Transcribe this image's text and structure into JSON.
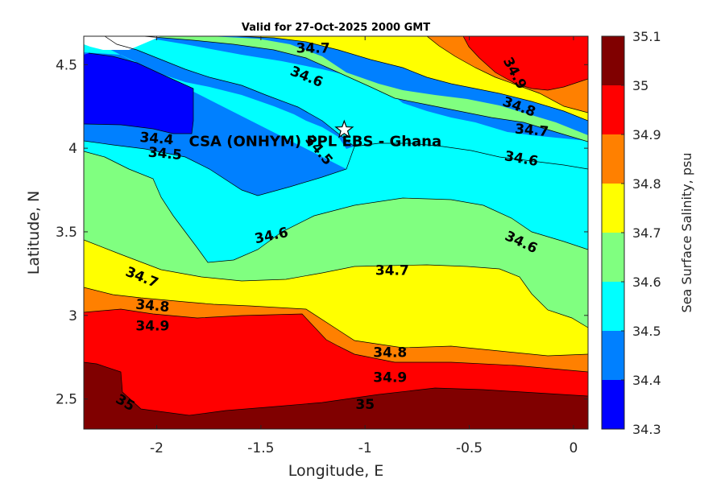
{
  "chart_data": {
    "type": "filled-contour",
    "title": "Valid for 27-Oct-2025 2000 GMT",
    "xlabel": "Longitude, E",
    "ylabel": "Latitude, N",
    "xlim": [
      -2.35,
      0.07
    ],
    "ylim": [
      2.32,
      4.67
    ],
    "xticks": [
      -2,
      -1.5,
      -1,
      -0.5,
      0
    ],
    "xtick_labels": [
      "-2",
      "-1.5",
      "-1",
      "-0.5",
      "0"
    ],
    "yticks": [
      2.5,
      3,
      3.5,
      4,
      4.5
    ],
    "ytick_labels": [
      "2.5",
      "3",
      "3.5",
      "4",
      "4.5"
    ],
    "colorbar": {
      "label": "Sea Surface Salinity, psu",
      "levels": [
        34.3,
        34.4,
        34.5,
        34.6,
        34.7,
        34.8,
        34.9,
        35.0,
        35.1
      ],
      "tick_labels": [
        "34.3",
        "34.4",
        "34.5",
        "34.6",
        "34.7",
        "34.8",
        "34.9",
        "35",
        "35.1"
      ],
      "colors": [
        "#0000ff",
        "#0080ff",
        "#00ffff",
        "#80ff80",
        "#ffff00",
        "#ff8000",
        "#ff0000",
        "#800000"
      ]
    },
    "contour_labels": [
      {
        "text": "34.7",
        "lon": -1.25,
        "lat": 4.6,
        "angle": 0
      },
      {
        "text": "34.6",
        "lon": -1.28,
        "lat": 4.43,
        "angle": 22
      },
      {
        "text": "34.9",
        "lon": -0.28,
        "lat": 4.45,
        "angle": 62
      },
      {
        "text": "34.8",
        "lon": -0.26,
        "lat": 4.25,
        "angle": 20
      },
      {
        "text": "34.7",
        "lon": -0.2,
        "lat": 4.11,
        "angle": 5
      },
      {
        "text": "34.6",
        "lon": -0.25,
        "lat": 3.94,
        "angle": 10
      },
      {
        "text": "34.4",
        "lon": -2.0,
        "lat": 4.06,
        "angle": 5
      },
      {
        "text": "34.5",
        "lon": -1.96,
        "lat": 3.97,
        "angle": 5
      },
      {
        "text": "34.5",
        "lon": -1.22,
        "lat": 3.99,
        "angle": 50
      },
      {
        "text": "34.6",
        "lon": -1.45,
        "lat": 3.48,
        "angle": -12
      },
      {
        "text": "34.6",
        "lon": -0.25,
        "lat": 3.44,
        "angle": 25
      },
      {
        "text": "34.7",
        "lon": -2.07,
        "lat": 3.23,
        "angle": 22
      },
      {
        "text": "34.7",
        "lon": -0.87,
        "lat": 3.27,
        "angle": 0
      },
      {
        "text": "34.8",
        "lon": -2.02,
        "lat": 3.06,
        "angle": 5
      },
      {
        "text": "34.9",
        "lon": -2.02,
        "lat": 2.94,
        "angle": 0
      },
      {
        "text": "34.8",
        "lon": -0.88,
        "lat": 2.78,
        "angle": 0
      },
      {
        "text": "34.9",
        "lon": -0.88,
        "lat": 2.63,
        "angle": 0
      },
      {
        "text": "35",
        "lon": -2.15,
        "lat": 2.48,
        "angle": 30
      },
      {
        "text": "35",
        "lon": -1.0,
        "lat": 2.47,
        "angle": 0
      }
    ],
    "site": {
      "label": "CSA (ONHYM) PPL EBS  - Ghana",
      "lon": -1.1,
      "lat": 4.11
    }
  }
}
